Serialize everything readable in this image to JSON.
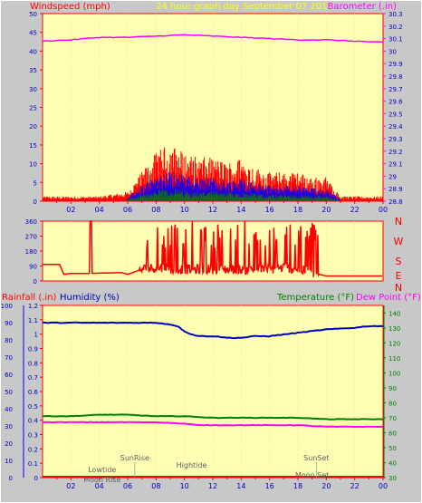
{
  "top_header": {
    "left_label": "Windspeed (mph)",
    "center_label": "24 hour graph day   September 07 2018",
    "right_label": "Barometer (.in)"
  },
  "compass": [
    "N",
    "W",
    "S",
    "E",
    "N"
  ],
  "bottom_header": {
    "rainfall_label": "Rainfall (.in)",
    "humidity_label": "Humidity (%)",
    "temperature_label": "Temperature (°F)",
    "dewpoint_label": "Dew Point (°F)"
  },
  "x_ticks": [
    "02",
    "04",
    "06",
    "08",
    "10",
    "12",
    "14",
    "16",
    "18",
    "20",
    "22",
    "00"
  ],
  "events": [
    {
      "label": "Lowtide",
      "hour": 4.2
    },
    {
      "label": "Moon Rise",
      "hour": 4.2
    },
    {
      "label": "SunRise",
      "hour": 6.5
    },
    {
      "label": "Hightide",
      "hour": 10.5
    },
    {
      "label": "SunSet",
      "hour": 19.3
    },
    {
      "label": "Moon Set",
      "hour": 19.0
    }
  ],
  "colors": {
    "background": "#c8c8c8",
    "plot": "#ffffb4",
    "axis": "#ff0000",
    "wind": "#ff0000",
    "gust_blue": "#0000ff",
    "green": "#008000",
    "barometer": "#ff00ff",
    "humidity": "#0000c0",
    "temperature": "#008000",
    "dewpoint": "#ff00ff"
  },
  "chart_data": [
    {
      "type": "bar",
      "panel": "wind",
      "x_range_hours": [
        0,
        24
      ],
      "y_left": {
        "label": "Windspeed (mph)",
        "ticks": [
          "0",
          "5",
          "10",
          "15",
          "20",
          "25",
          "30",
          "35",
          "40",
          "45",
          "50"
        ],
        "range": [
          0,
          50
        ]
      },
      "y_right": {
        "label": "Barometer (.in)",
        "ticks": [
          "28.8",
          "28.9",
          "29",
          "29.1",
          "29.2",
          "29.3",
          "29.4",
          "29.5",
          "29.6",
          "29.7",
          "29.8",
          "29.9",
          "30",
          "30.1",
          "30.2",
          "30.3"
        ],
        "range": [
          28.8,
          30.3
        ]
      },
      "series": [
        {
          "name": "Windspeed (mph)",
          "profile": [
            [
              0,
              1
            ],
            [
              2,
              1
            ],
            [
              4,
              1
            ],
            [
              6,
              2
            ],
            [
              7,
              6
            ],
            [
              8,
              10
            ],
            [
              9,
              12
            ],
            [
              10,
              10
            ],
            [
              11,
              9
            ],
            [
              12,
              9
            ],
            [
              13,
              8
            ],
            [
              14,
              9
            ],
            [
              15,
              7
            ],
            [
              16,
              6
            ],
            [
              17,
              6
            ],
            [
              18,
              6
            ],
            [
              19,
              5
            ],
            [
              20,
              5
            ],
            [
              21,
              1
            ],
            [
              24,
              1
            ]
          ]
        },
        {
          "name": "Barometer (.in)",
          "values": [
            [
              0,
              30.08
            ],
            [
              2,
              30.09
            ],
            [
              4,
              30.11
            ],
            [
              6,
              30.11
            ],
            [
              8,
              30.12
            ],
            [
              10,
              30.13
            ],
            [
              12,
              30.12
            ],
            [
              14,
              30.11
            ],
            [
              16,
              30.1
            ],
            [
              18,
              30.09
            ],
            [
              20,
              30.09
            ],
            [
              22,
              30.08
            ],
            [
              24,
              30.07
            ]
          ]
        }
      ]
    },
    {
      "type": "line",
      "panel": "wind direction",
      "x_range_hours": [
        0,
        24
      ],
      "y_left": {
        "ticks": [
          "0",
          "90",
          "180",
          "270",
          "360"
        ],
        "range": [
          0,
          360
        ]
      },
      "series": [
        {
          "name": "Wind direction",
          "values": [
            [
              0,
              100
            ],
            [
              1.2,
              100
            ],
            [
              1.5,
              40
            ],
            [
              2,
              45
            ],
            [
              3,
              45
            ],
            [
              5.6,
              50
            ],
            [
              6,
              40
            ],
            [
              7,
              70
            ],
            [
              8,
              80
            ],
            [
              9,
              70
            ],
            [
              10,
              70
            ],
            [
              12,
              70
            ],
            [
              13,
              70
            ],
            [
              14,
              70
            ],
            [
              16,
              70
            ],
            [
              17,
              80
            ],
            [
              18,
              70
            ],
            [
              19,
              50
            ],
            [
              20,
              30
            ],
            [
              24,
              30
            ]
          ]
        }
      ]
    },
    {
      "type": "line",
      "panel": "temperature / humidity",
      "x_range_hours": [
        0,
        24
      ],
      "y_left_outer": {
        "label": "Rainfall (.in)",
        "ticks": [
          "0",
          "10",
          "20",
          "30",
          "40",
          "50",
          "60",
          "70",
          "80",
          "90",
          "100"
        ],
        "range": [
          0,
          100
        ]
      },
      "y_left_inner": {
        "label": "Humidity (%)",
        "ticks": [
          "0",
          "0.1",
          "0.2",
          "0.3",
          "0.4",
          "0.5",
          "0.6",
          "0.7",
          "0.8",
          "0.9",
          "1",
          "1.1",
          "1.2"
        ],
        "range": [
          0,
          1.2
        ]
      },
      "y_right": {
        "label": "Temperature (°F)",
        "ticks": [
          "30",
          "40",
          "50",
          "60",
          "70",
          "80",
          "90",
          "100",
          "110",
          "120",
          "130",
          "140"
        ],
        "range": [
          30,
          145
        ]
      },
      "series": [
        {
          "name": "Humidity (%)",
          "values": [
            [
              0,
              90
            ],
            [
              2,
              90
            ],
            [
              4,
              90
            ],
            [
              6,
              90
            ],
            [
              8,
              90
            ],
            [
              9,
              89
            ],
            [
              9.5,
              88
            ],
            [
              10,
              85
            ],
            [
              10.5,
              83
            ],
            [
              11,
              82
            ],
            [
              12,
              82
            ],
            [
              13,
              81
            ],
            [
              14,
              81
            ],
            [
              15,
              82
            ],
            [
              16,
              82
            ],
            [
              18,
              84
            ],
            [
              19,
              85
            ],
            [
              20,
              86
            ],
            [
              22,
              87
            ],
            [
              23,
              88
            ],
            [
              24,
              88
            ]
          ]
        },
        {
          "name": "Temperature (°F)",
          "values": [
            [
              0,
              71
            ],
            [
              2,
              71
            ],
            [
              4,
              72
            ],
            [
              6,
              72
            ],
            [
              8,
              71
            ],
            [
              10,
              71
            ],
            [
              12,
              70
            ],
            [
              14,
              70
            ],
            [
              16,
              70
            ],
            [
              18,
              70
            ],
            [
              20,
              69
            ],
            [
              22,
              69
            ],
            [
              24,
              69
            ]
          ]
        },
        {
          "name": "Dew Point (°F)",
          "values": [
            [
              0,
              67
            ],
            [
              2,
              67
            ],
            [
              4,
              67
            ],
            [
              6,
              67
            ],
            [
              8,
              67
            ],
            [
              10,
              66
            ],
            [
              11,
              65
            ],
            [
              12,
              65
            ],
            [
              14,
              65
            ],
            [
              16,
              65
            ],
            [
              18,
              65
            ],
            [
              20,
              64
            ],
            [
              22,
              64
            ],
            [
              24,
              64
            ]
          ]
        },
        {
          "name": "Rainfall (.in)",
          "values": [
            [
              0,
              0
            ],
            [
              24,
              0
            ]
          ]
        }
      ]
    }
  ]
}
